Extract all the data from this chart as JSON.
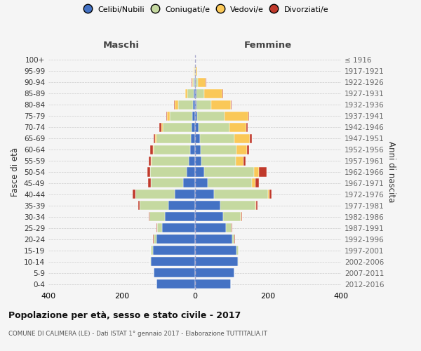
{
  "age_groups": [
    "0-4",
    "5-9",
    "10-14",
    "15-19",
    "20-24",
    "25-29",
    "30-34",
    "35-39",
    "40-44",
    "45-49",
    "50-54",
    "55-59",
    "60-64",
    "65-69",
    "70-74",
    "75-79",
    "80-84",
    "85-89",
    "90-94",
    "95-99",
    "100+"
  ],
  "birth_years": [
    "2012-2016",
    "2007-2011",
    "2002-2006",
    "1997-2001",
    "1992-1996",
    "1987-1991",
    "1982-1986",
    "1977-1981",
    "1972-1976",
    "1967-1971",
    "1962-1966",
    "1957-1961",
    "1952-1956",
    "1947-1951",
    "1942-1946",
    "1937-1941",
    "1932-1936",
    "1927-1931",
    "1922-1926",
    "1917-1921",
    "≤ 1916"
  ],
  "maschi_celibi": [
    105,
    112,
    120,
    115,
    105,
    90,
    82,
    72,
    55,
    32,
    22,
    16,
    13,
    10,
    8,
    7,
    4,
    2,
    1,
    0,
    0
  ],
  "maschi_coniugati": [
    0,
    1,
    2,
    4,
    8,
    13,
    42,
    78,
    108,
    88,
    100,
    102,
    100,
    95,
    80,
    62,
    42,
    18,
    4,
    1,
    0
  ],
  "maschi_vedovi": [
    0,
    0,
    0,
    0,
    0,
    0,
    0,
    0,
    0,
    0,
    0,
    1,
    2,
    3,
    4,
    6,
    8,
    5,
    2,
    1,
    0
  ],
  "maschi_divorziati": [
    0,
    0,
    0,
    0,
    1,
    2,
    2,
    4,
    6,
    8,
    8,
    7,
    6,
    5,
    5,
    3,
    2,
    1,
    1,
    0,
    0
  ],
  "femmine_nubili": [
    98,
    108,
    118,
    115,
    102,
    85,
    78,
    70,
    52,
    35,
    25,
    18,
    16,
    14,
    10,
    7,
    4,
    4,
    2,
    1,
    0
  ],
  "femmine_coniugate": [
    0,
    1,
    2,
    4,
    6,
    16,
    48,
    95,
    148,
    122,
    138,
    95,
    98,
    95,
    85,
    75,
    42,
    22,
    6,
    1,
    0
  ],
  "femmine_vedove": [
    0,
    0,
    0,
    0,
    0,
    0,
    1,
    2,
    4,
    9,
    13,
    20,
    28,
    42,
    46,
    65,
    52,
    50,
    22,
    5,
    0
  ],
  "femmine_divorziate": [
    0,
    0,
    0,
    0,
    2,
    2,
    3,
    4,
    7,
    10,
    20,
    7,
    7,
    5,
    3,
    2,
    2,
    1,
    1,
    0,
    0
  ],
  "color_celibi": "#4472c4",
  "color_coniugati": "#c5d9a0",
  "color_vedovi": "#fac858",
  "color_divorziati": "#c0392b",
  "xlim": 400,
  "title": "Popolazione per età, sesso e stato civile - 2017",
  "subtitle": "COMUNE DI CALIMERA (LE) - Dati ISTAT 1° gennaio 2017 - Elaborazione TUTTITALIA.IT",
  "ylabel_left": "Fasce di età",
  "ylabel_right": "Anni di nascita",
  "label_maschi": "Maschi",
  "label_femmine": "Femmine",
  "legend_celibi": "Celibi/Nubili",
  "legend_coniugati": "Coniugati/e",
  "legend_vedovi": "Vedovi/e",
  "legend_divorziati": "Divorziati/e",
  "bg_color": "#f5f5f5"
}
